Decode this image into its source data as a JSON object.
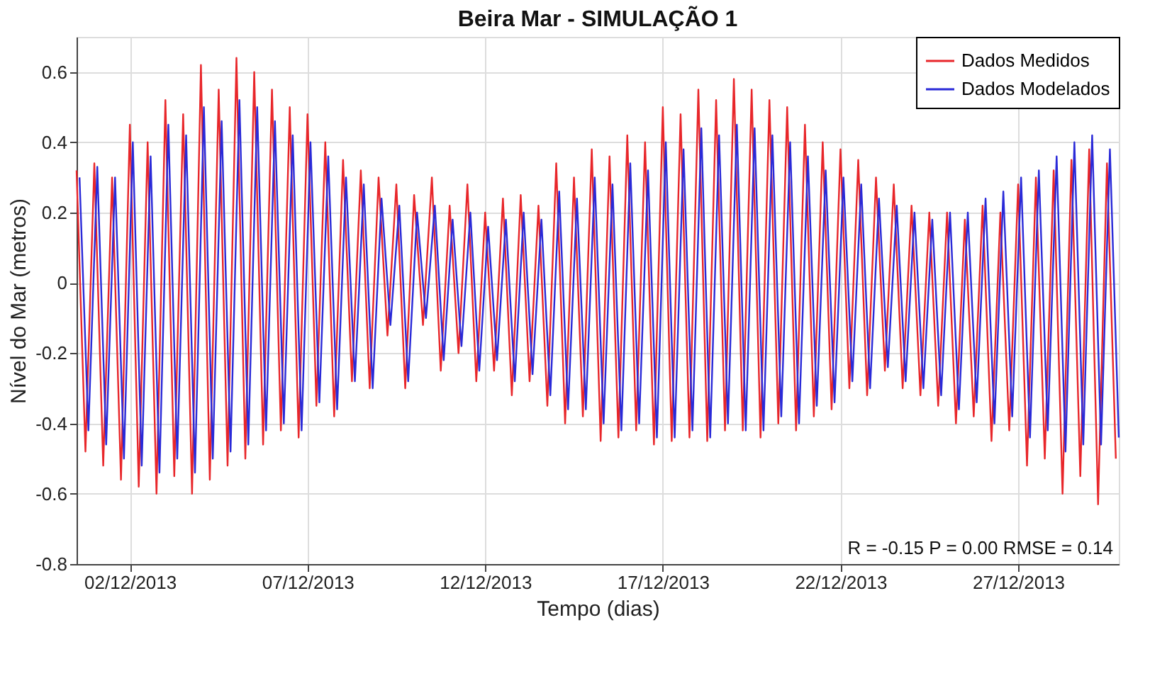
{
  "chart_data": {
    "type": "line",
    "title": "Beira Mar - SIMULAÇÃO 1",
    "xlabel": "Tempo (dias)",
    "ylabel": "Nível do Mar (metros)",
    "x": [
      "2013-11-30T12:00",
      "2013-11-30T18:00",
      "2013-12-01T00:00",
      "2013-12-01T06:00",
      "2013-12-01T12:00",
      "2013-12-01T18:00",
      "2013-12-02T00:00",
      "2013-12-02T06:00",
      "2013-12-02T12:00",
      "2013-12-02T18:00",
      "2013-12-03T00:00",
      "2013-12-03T06:00",
      "2013-12-03T12:00",
      "2013-12-03T18:00",
      "2013-12-04T00:00",
      "2013-12-04T06:00",
      "2013-12-04T12:00",
      "2013-12-04T18:00",
      "2013-12-05T00:00",
      "2013-12-05T06:00",
      "2013-12-05T12:00",
      "2013-12-05T18:00",
      "2013-12-06T00:00",
      "2013-12-06T06:00",
      "2013-12-06T12:00",
      "2013-12-06T18:00",
      "2013-12-07T00:00",
      "2013-12-07T06:00",
      "2013-12-07T12:00",
      "2013-12-07T18:00",
      "2013-12-08T00:00",
      "2013-12-08T06:00",
      "2013-12-08T12:00",
      "2013-12-08T18:00",
      "2013-12-09T00:00",
      "2013-12-09T06:00",
      "2013-12-09T12:00",
      "2013-12-09T18:00",
      "2013-12-10T00:00",
      "2013-12-10T06:00",
      "2013-12-10T12:00",
      "2013-12-10T18:00",
      "2013-12-11T00:00",
      "2013-12-11T06:00",
      "2013-12-11T12:00",
      "2013-12-11T18:00",
      "2013-12-12T00:00",
      "2013-12-12T06:00",
      "2013-12-12T12:00",
      "2013-12-12T18:00",
      "2013-12-13T00:00",
      "2013-12-13T06:00",
      "2013-12-13T12:00",
      "2013-12-13T18:00",
      "2013-12-14T00:00",
      "2013-12-14T06:00",
      "2013-12-14T12:00",
      "2013-12-14T18:00",
      "2013-12-15T00:00",
      "2013-12-15T06:00",
      "2013-12-15T12:00",
      "2013-12-15T18:00",
      "2013-12-16T00:00",
      "2013-12-16T06:00",
      "2013-12-16T12:00",
      "2013-12-16T18:00",
      "2013-12-17T00:00",
      "2013-12-17T06:00",
      "2013-12-17T12:00",
      "2013-12-17T18:00",
      "2013-12-18T00:00",
      "2013-12-18T06:00",
      "2013-12-18T12:00",
      "2013-12-18T18:00",
      "2013-12-19T00:00",
      "2013-12-19T06:00",
      "2013-12-19T12:00",
      "2013-12-19T18:00",
      "2013-12-20T00:00",
      "2013-12-20T06:00",
      "2013-12-20T12:00",
      "2013-12-20T18:00",
      "2013-12-21T00:00",
      "2013-12-21T06:00",
      "2013-12-21T12:00",
      "2013-12-21T18:00",
      "2013-12-22T00:00",
      "2013-12-22T06:00",
      "2013-12-22T12:00",
      "2013-12-22T18:00",
      "2013-12-23T00:00",
      "2013-12-23T06:00",
      "2013-12-23T12:00",
      "2013-12-23T18:00",
      "2013-12-24T00:00",
      "2013-12-24T06:00",
      "2013-12-24T12:00",
      "2013-12-24T18:00",
      "2013-12-25T00:00",
      "2013-12-25T06:00",
      "2013-12-25T12:00",
      "2013-12-25T18:00",
      "2013-12-26T00:00",
      "2013-12-26T06:00",
      "2013-12-26T12:00",
      "2013-12-26T18:00",
      "2013-12-27T00:00",
      "2013-12-27T06:00",
      "2013-12-27T12:00",
      "2013-12-27T18:00",
      "2013-12-28T00:00",
      "2013-12-28T06:00",
      "2013-12-28T12:00",
      "2013-12-28T18:00",
      "2013-12-29T00:00",
      "2013-12-29T06:00",
      "2013-12-29T12:00",
      "2013-12-29T18:00"
    ],
    "series": [
      {
        "name": "Dados Medidos",
        "color": "#e8262a",
        "values": [
          0.32,
          -0.48,
          0.34,
          -0.52,
          0.3,
          -0.56,
          0.45,
          -0.58,
          0.4,
          -0.6,
          0.52,
          -0.55,
          0.48,
          -0.6,
          0.62,
          -0.56,
          0.55,
          -0.52,
          0.64,
          -0.5,
          0.6,
          -0.46,
          0.55,
          -0.42,
          0.5,
          -0.44,
          0.48,
          -0.35,
          0.4,
          -0.38,
          0.35,
          -0.28,
          0.32,
          -0.3,
          0.3,
          -0.15,
          0.28,
          -0.3,
          0.25,
          -0.12,
          0.3,
          -0.25,
          0.22,
          -0.2,
          0.28,
          -0.28,
          0.2,
          -0.25,
          0.24,
          -0.32,
          0.25,
          -0.28,
          0.22,
          -0.35,
          0.34,
          -0.4,
          0.3,
          -0.38,
          0.38,
          -0.45,
          0.36,
          -0.44,
          0.42,
          -0.42,
          0.4,
          -0.46,
          0.5,
          -0.45,
          0.48,
          -0.44,
          0.55,
          -0.45,
          0.52,
          -0.42,
          0.58,
          -0.42,
          0.55,
          -0.44,
          0.52,
          -0.4,
          0.5,
          -0.42,
          0.45,
          -0.38,
          0.4,
          -0.36,
          0.38,
          -0.3,
          0.35,
          -0.32,
          0.3,
          -0.25,
          0.28,
          -0.3,
          0.22,
          -0.32,
          0.2,
          -0.35,
          0.2,
          -0.4,
          0.18,
          -0.38,
          0.22,
          -0.45,
          0.2,
          -0.42,
          0.28,
          -0.52,
          0.3,
          -0.5,
          0.32,
          -0.6,
          0.35,
          -0.55,
          0.38,
          -0.63,
          0.34,
          -0.5
        ]
      },
      {
        "name": "Dados Modelados",
        "color": "#2a2ad8",
        "x": [
          "2013-11-30T14:00",
          "2013-11-30T20:00",
          "2013-12-01T02:00",
          "2013-12-01T08:00",
          "2013-12-01T14:00",
          "2013-12-01T20:00",
          "2013-12-02T02:00",
          "2013-12-02T08:00",
          "2013-12-02T14:00",
          "2013-12-02T20:00",
          "2013-12-03T02:00",
          "2013-12-03T08:00",
          "2013-12-03T14:00",
          "2013-12-03T20:00",
          "2013-12-04T02:00",
          "2013-12-04T08:00",
          "2013-12-04T14:00",
          "2013-12-04T20:00",
          "2013-12-05T02:00",
          "2013-12-05T08:00",
          "2013-12-05T14:00",
          "2013-12-05T20:00",
          "2013-12-06T02:00",
          "2013-12-06T08:00",
          "2013-12-06T14:00",
          "2013-12-06T20:00",
          "2013-12-07T02:00",
          "2013-12-07T08:00",
          "2013-12-07T14:00",
          "2013-12-07T20:00",
          "2013-12-08T02:00",
          "2013-12-08T08:00",
          "2013-12-08T14:00",
          "2013-12-08T20:00",
          "2013-12-09T02:00",
          "2013-12-09T08:00",
          "2013-12-09T14:00",
          "2013-12-09T20:00",
          "2013-12-10T02:00",
          "2013-12-10T08:00",
          "2013-12-10T14:00",
          "2013-12-10T20:00",
          "2013-12-11T02:00",
          "2013-12-11T08:00",
          "2013-12-11T14:00",
          "2013-12-11T20:00",
          "2013-12-12T02:00",
          "2013-12-12T08:00",
          "2013-12-12T14:00",
          "2013-12-12T20:00",
          "2013-12-13T02:00",
          "2013-12-13T08:00",
          "2013-12-13T14:00",
          "2013-12-13T20:00",
          "2013-12-14T02:00",
          "2013-12-14T08:00",
          "2013-12-14T14:00",
          "2013-12-14T20:00",
          "2013-12-15T02:00",
          "2013-12-15T08:00",
          "2013-12-15T14:00",
          "2013-12-15T20:00",
          "2013-12-16T02:00",
          "2013-12-16T08:00",
          "2013-12-16T14:00",
          "2013-12-16T20:00",
          "2013-12-17T02:00",
          "2013-12-17T08:00",
          "2013-12-17T14:00",
          "2013-12-17T20:00",
          "2013-12-18T02:00",
          "2013-12-18T08:00",
          "2013-12-18T14:00",
          "2013-12-18T20:00",
          "2013-12-19T02:00",
          "2013-12-19T08:00",
          "2013-12-19T14:00",
          "2013-12-19T20:00",
          "2013-12-20T02:00",
          "2013-12-20T08:00",
          "2013-12-20T14:00",
          "2013-12-20T20:00",
          "2013-12-21T02:00",
          "2013-12-21T08:00",
          "2013-12-21T14:00",
          "2013-12-21T20:00",
          "2013-12-22T02:00",
          "2013-12-22T08:00",
          "2013-12-22T14:00",
          "2013-12-22T20:00",
          "2013-12-23T02:00",
          "2013-12-23T08:00",
          "2013-12-23T14:00",
          "2013-12-23T20:00",
          "2013-12-24T02:00",
          "2013-12-24T08:00",
          "2013-12-24T14:00",
          "2013-12-24T20:00",
          "2013-12-25T02:00",
          "2013-12-25T08:00",
          "2013-12-25T14:00",
          "2013-12-25T20:00",
          "2013-12-26T02:00",
          "2013-12-26T08:00",
          "2013-12-26T14:00",
          "2013-12-26T20:00",
          "2013-12-27T02:00",
          "2013-12-27T08:00",
          "2013-12-27T14:00",
          "2013-12-27T20:00",
          "2013-12-28T02:00",
          "2013-12-28T08:00",
          "2013-12-28T14:00",
          "2013-12-28T20:00",
          "2013-12-29T02:00",
          "2013-12-29T08:00",
          "2013-12-29T14:00",
          "2013-12-29T20:00"
        ],
        "values": [
          0.3,
          -0.42,
          0.33,
          -0.46,
          0.3,
          -0.5,
          0.4,
          -0.52,
          0.36,
          -0.54,
          0.45,
          -0.5,
          0.42,
          -0.54,
          0.5,
          -0.5,
          0.46,
          -0.48,
          0.52,
          -0.46,
          0.5,
          -0.42,
          0.46,
          -0.4,
          0.42,
          -0.42,
          0.4,
          -0.34,
          0.36,
          -0.36,
          0.3,
          -0.28,
          0.28,
          -0.3,
          0.24,
          -0.12,
          0.22,
          -0.28,
          0.2,
          -0.1,
          0.22,
          -0.22,
          0.18,
          -0.18,
          0.2,
          -0.25,
          0.16,
          -0.22,
          0.18,
          -0.28,
          0.2,
          -0.26,
          0.18,
          -0.32,
          0.26,
          -0.36,
          0.24,
          -0.36,
          0.3,
          -0.4,
          0.28,
          -0.42,
          0.34,
          -0.4,
          0.32,
          -0.44,
          0.4,
          -0.44,
          0.38,
          -0.42,
          0.44,
          -0.44,
          0.42,
          -0.4,
          0.45,
          -0.42,
          0.44,
          -0.42,
          0.42,
          -0.38,
          0.4,
          -0.4,
          0.36,
          -0.35,
          0.32,
          -0.34,
          0.3,
          -0.28,
          0.28,
          -0.3,
          0.24,
          -0.24,
          0.22,
          -0.28,
          0.2,
          -0.3,
          0.18,
          -0.32,
          0.2,
          -0.36,
          0.2,
          -0.34,
          0.24,
          -0.4,
          0.26,
          -0.38,
          0.3,
          -0.44,
          0.32,
          -0.42,
          0.36,
          -0.48,
          0.4,
          -0.46,
          0.42,
          -0.46,
          0.38,
          -0.44
        ]
      }
    ],
    "xlim": [
      "2013-11-30T12:00",
      "2013-12-29T20:00"
    ],
    "xticks": [
      {
        "value": "2013-12-02",
        "label": "02/12/2013"
      },
      {
        "value": "2013-12-07",
        "label": "07/12/2013"
      },
      {
        "value": "2013-12-12",
        "label": "12/12/2013"
      },
      {
        "value": "2013-12-17",
        "label": "17/12/2013"
      },
      {
        "value": "2013-12-22",
        "label": "22/12/2013"
      },
      {
        "value": "2013-12-27",
        "label": "27/12/2013"
      }
    ],
    "ylim": [
      -0.8,
      0.7
    ],
    "yticks": [
      -0.8,
      -0.6,
      -0.4,
      -0.2,
      0,
      0.2,
      0.4,
      0.6
    ],
    "grid": true,
    "legend": "top right",
    "line_style": "solid",
    "marker": "none",
    "annotations": [
      "R = -0.15  P = 0.00  RMSE = 0.14"
    ]
  }
}
